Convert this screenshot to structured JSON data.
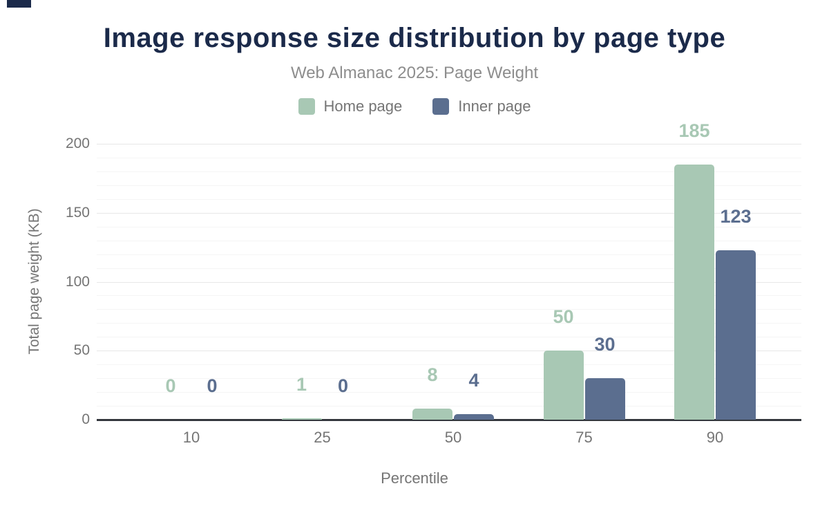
{
  "header": {
    "title": "Image response size distribution by page type",
    "subtitle": "Web Almanac 2025: Page Weight"
  },
  "chart_data": {
    "type": "bar",
    "title": "Image response size distribution by page type",
    "subtitle": "Web Almanac 2025: Page Weight",
    "categories": [
      "10",
      "25",
      "50",
      "75",
      "90"
    ],
    "series": [
      {
        "name": "Home page",
        "color": "#a8c8b4",
        "values": [
          0,
          1,
          8,
          50,
          185
        ]
      },
      {
        "name": "Inner page",
        "color": "#5b6e8f",
        "values": [
          0,
          0,
          4,
          30,
          123
        ]
      }
    ],
    "xlabel": "Percentile",
    "ylabel": "Total page weight (KB)",
    "ylim": [
      0,
      200
    ],
    "yticks": [
      0,
      50,
      100,
      150,
      200
    ],
    "grid": "horizontal; minor every 10, major every 50",
    "legend_position": "top",
    "data_labels": true
  },
  "colors": {
    "title": "#1b2a4a",
    "subtitle_text": "#8d8d8d",
    "axis_text": "#757575",
    "axis_line": "#33373d",
    "gridline_major": "#e7e7e7",
    "gridline_minor": "#f5f5f5",
    "home_page": "#a8c8b4",
    "inner_page": "#5b6e8f",
    "background": "#ffffff"
  }
}
